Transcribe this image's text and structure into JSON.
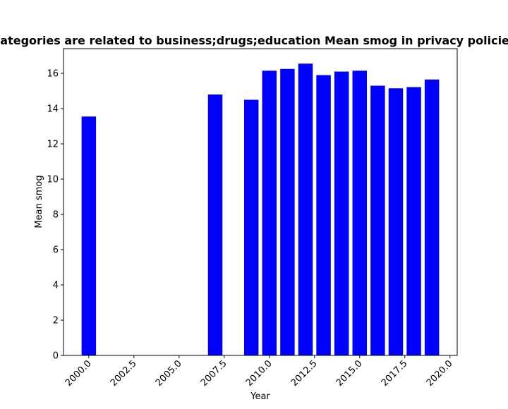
{
  "chart_data": {
    "type": "bar",
    "title": "Categories are related to business;drugs;education Mean smog in privacy policies",
    "xlabel": "Year",
    "ylabel": "Mean smog",
    "x": [
      2000,
      2007,
      2009,
      2010,
      2011,
      2012,
      2013,
      2014,
      2015,
      2016,
      2017,
      2018,
      2019
    ],
    "values": [
      13.55,
      14.8,
      14.5,
      16.15,
      16.25,
      16.55,
      15.9,
      16.1,
      16.15,
      15.3,
      15.15,
      15.22,
      15.65
    ],
    "bar_width": 0.8,
    "xlim": [
      1998.6,
      2020.4
    ],
    "ylim": [
      0,
      17.4
    ],
    "x_ticks": [
      2000.0,
      2002.5,
      2005.0,
      2007.5,
      2010.0,
      2012.5,
      2015.0,
      2017.5,
      2020.0
    ],
    "x_tick_labels": [
      "2000.0",
      "2002.5",
      "2005.0",
      "2007.5",
      "2010.0",
      "2012.5",
      "2015.0",
      "2017.5",
      "2020.0"
    ],
    "y_ticks": [
      0,
      2,
      4,
      6,
      8,
      10,
      12,
      14,
      16
    ],
    "y_tick_labels": [
      "0",
      "2",
      "4",
      "6",
      "8",
      "10",
      "12",
      "14",
      "16"
    ],
    "grid": false,
    "colors": {
      "bar": "#0000ff",
      "axis": "#000000",
      "background": "#ffffff"
    }
  }
}
